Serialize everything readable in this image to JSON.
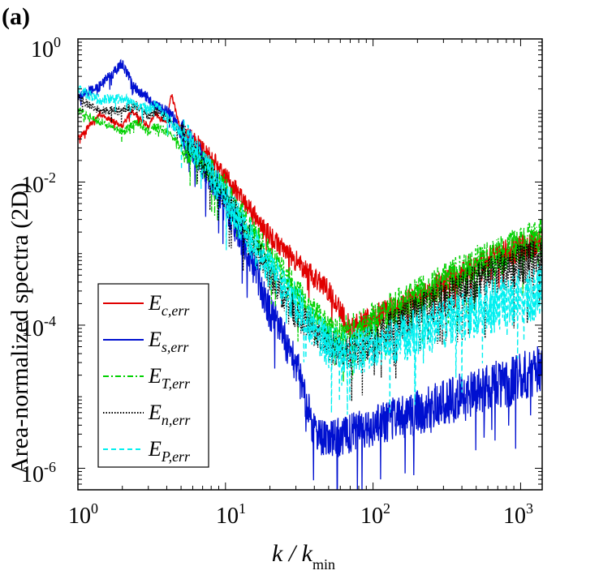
{
  "panel_label": "(a)",
  "colors": {
    "E_c": "#e00000",
    "E_s": "#0010d0",
    "E_T": "#00d000",
    "E_n": "#000000",
    "E_P": "#00f0f0"
  },
  "legend": {
    "entries": [
      {
        "key": "E_c",
        "main": "E",
        "sub": "c,err",
        "style": "solid"
      },
      {
        "key": "E_s",
        "main": "E",
        "sub": "s,err",
        "style": "solid"
      },
      {
        "key": "E_T",
        "main": "E",
        "sub": "T,err",
        "style": "dashdot"
      },
      {
        "key": "E_n",
        "main": "E",
        "sub": "n,err",
        "style": "dotted"
      },
      {
        "key": "E_P",
        "main": "E",
        "sub": "P,err",
        "style": "dashed"
      }
    ]
  },
  "chart_data": {
    "type": "line",
    "title": "",
    "xlabel": "k / k",
    "xlabel_sub": "min",
    "ylabel": "Area-normalized spectra (2D)",
    "xscale": "log",
    "yscale": "log",
    "xlim": [
      1,
      1400
    ],
    "ylim": [
      5e-07,
      1
    ],
    "x_ticks": [
      {
        "value": 1,
        "base": "10",
        "exp": "0"
      },
      {
        "value": 10,
        "base": "10",
        "exp": "1"
      },
      {
        "value": 100,
        "base": "10",
        "exp": "2"
      },
      {
        "value": 1000,
        "base": "10",
        "exp": "3"
      }
    ],
    "y_ticks": [
      {
        "value": 1,
        "base": "10",
        "exp": "0"
      },
      {
        "value": 0.01,
        "base": "10",
        "exp": "-2"
      },
      {
        "value": 0.0001,
        "base": "10",
        "exp": "-4"
      },
      {
        "value": 1e-06,
        "base": "10",
        "exp": "-6"
      }
    ],
    "series": [
      {
        "name": "E_c,err",
        "key": "E_c",
        "style": "solid",
        "noise": 0.1,
        "x": [
          1,
          1.4,
          2,
          2.3,
          3,
          3.3,
          4,
          4.3,
          5,
          6,
          8,
          10,
          15,
          20,
          30,
          50,
          70,
          100,
          200,
          500,
          1000,
          1400
        ],
        "y": [
          0.04,
          0.09,
          0.06,
          0.1,
          0.06,
          0.09,
          0.07,
          0.17,
          0.05,
          0.04,
          0.022,
          0.012,
          0.004,
          0.0018,
          0.0008,
          0.0003,
          9e-05,
          0.00013,
          0.00025,
          0.0007,
          0.0012,
          0.0015
        ]
      },
      {
        "name": "E_s,err",
        "key": "E_s",
        "style": "solid",
        "noise": 0.18,
        "x": [
          1,
          1.4,
          2,
          2.3,
          2.6,
          3,
          3.3,
          4,
          4.5,
          5,
          6,
          8,
          10,
          15,
          20,
          30,
          40,
          50,
          70,
          100,
          200,
          500,
          1000,
          1400
        ],
        "y": [
          0.15,
          0.22,
          0.45,
          0.25,
          0.18,
          0.15,
          0.12,
          0.1,
          0.08,
          0.05,
          0.03,
          0.012,
          0.005,
          0.0008,
          0.00015,
          3e-05,
          3e-06,
          2.5e-06,
          3e-06,
          4e-06,
          6e-06,
          1.2e-05,
          1.8e-05,
          2.5e-05
        ]
      },
      {
        "name": "E_T,err",
        "key": "E_T",
        "style": "dashdot",
        "noise": 0.15,
        "x": [
          1,
          1.4,
          2,
          2.5,
          3,
          3.3,
          4,
          4.5,
          5,
          6,
          8,
          10,
          15,
          20,
          30,
          50,
          70,
          100,
          200,
          500,
          1000,
          1400
        ],
        "y": [
          0.1,
          0.07,
          0.05,
          0.07,
          0.05,
          0.06,
          0.05,
          0.04,
          0.03,
          0.025,
          0.014,
          0.008,
          0.002,
          0.0009,
          0.0003,
          8e-05,
          8e-05,
          0.00012,
          0.00025,
          0.0007,
          0.0012,
          0.0016
        ]
      },
      {
        "name": "E_n,err",
        "key": "E_n",
        "style": "dotted",
        "noise": 0.15,
        "x": [
          1,
          1.4,
          2,
          2.5,
          3,
          3.3,
          4,
          4.5,
          5,
          6,
          8,
          10,
          15,
          20,
          30,
          50,
          70,
          100,
          200,
          500,
          1000,
          1400
        ],
        "y": [
          0.15,
          0.1,
          0.1,
          0.12,
          0.08,
          0.1,
          0.08,
          0.06,
          0.05,
          0.03,
          0.012,
          0.006,
          0.0015,
          0.0005,
          0.00015,
          5e-05,
          4e-05,
          6e-05,
          0.00015,
          0.0004,
          0.0007,
          0.0009
        ]
      },
      {
        "name": "E_P,err",
        "key": "E_P",
        "style": "dashed",
        "noise": 0.2,
        "x": [
          1,
          1.4,
          2,
          2.5,
          3,
          3.3,
          4,
          4.5,
          5,
          6,
          8,
          10,
          15,
          20,
          30,
          50,
          70,
          100,
          200,
          500,
          1000,
          1400
        ],
        "y": [
          0.2,
          0.14,
          0.15,
          0.12,
          0.1,
          0.12,
          0.08,
          0.06,
          0.05,
          0.03,
          0.012,
          0.006,
          0.0015,
          0.0006,
          0.0002,
          5e-05,
          4e-05,
          5e-05,
          8e-05,
          0.00015,
          0.00025,
          0.0003
        ]
      }
    ]
  }
}
